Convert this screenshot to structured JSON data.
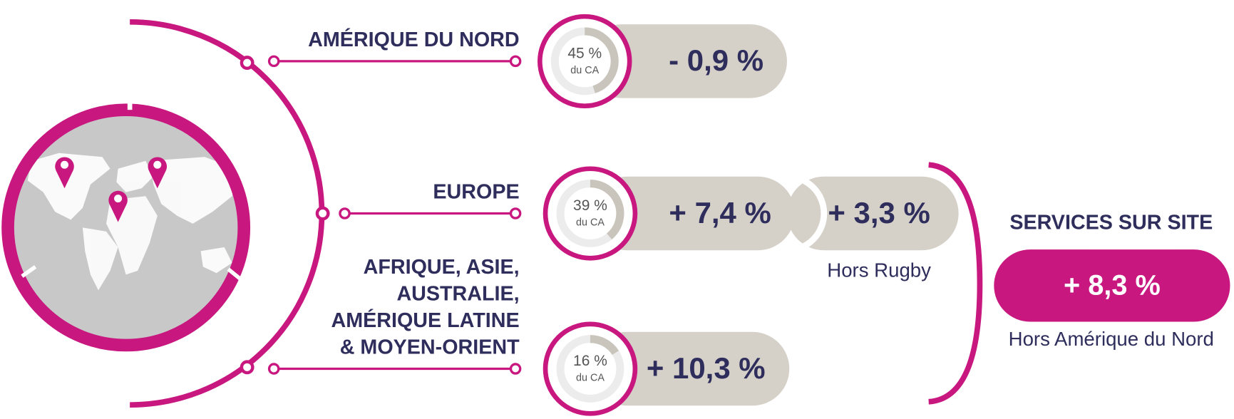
{
  "regions": [
    {
      "name_lines": [
        "AMÉRIQUE DU NORD"
      ],
      "share": 45,
      "share_label": "45 %",
      "share_unit": "du CA",
      "growth": [
        "- 0,9 %"
      ]
    },
    {
      "name_lines": [
        "EUROPE"
      ],
      "share": 39,
      "share_label": "39 %",
      "share_unit": "du CA",
      "growth": [
        "+ 7,4 %",
        "+ 3,3 %"
      ],
      "note": "Hors Rugby"
    },
    {
      "name_lines": [
        "AFRIQUE, ASIE,",
        "AUSTRALIE,",
        "AMÉRIQUE LATINE",
        "& MOYEN-ORIENT"
      ],
      "share": 16,
      "share_label": "16 %",
      "share_unit": "du CA",
      "growth": [
        "+ 10,3 %"
      ]
    }
  ],
  "services": {
    "title": "SERVICES SUR SITE",
    "growth": "+ 8,3 %",
    "note": "Hors Amérique du Nord"
  }
}
